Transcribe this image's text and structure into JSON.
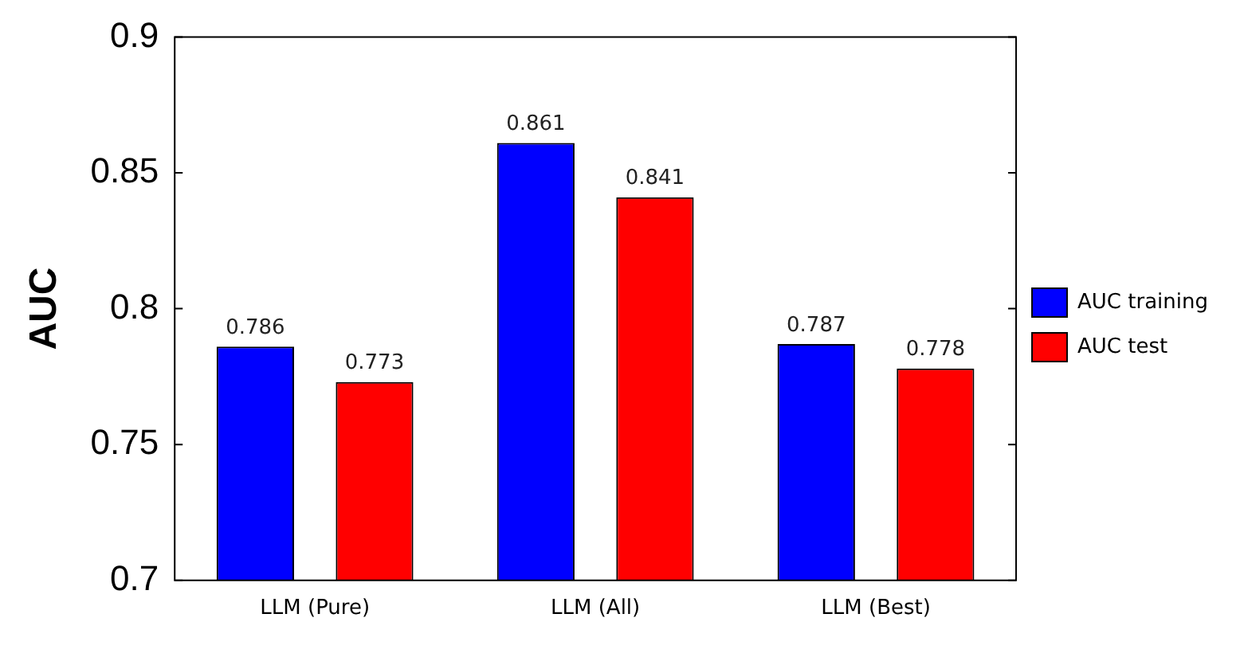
{
  "chart_data": {
    "type": "bar",
    "ylabel": "AUC",
    "categories": [
      "LLM (Pure)",
      "LLM (All)",
      "LLM (Best)"
    ],
    "series": [
      {
        "name": "AUC training",
        "color": "#0000ff",
        "values": [
          0.786,
          0.861,
          0.787
        ]
      },
      {
        "name": "AUC test",
        "color": "#ff0000",
        "values": [
          0.773,
          0.841,
          0.778
        ]
      }
    ],
    "ylim": [
      0.7,
      0.9
    ],
    "yticks": [
      0.7,
      0.75,
      0.8,
      0.85,
      0.9
    ],
    "data_labels": true,
    "legend": "right"
  }
}
